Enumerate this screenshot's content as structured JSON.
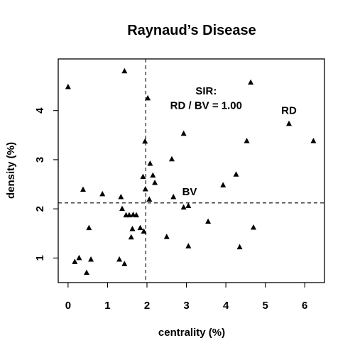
{
  "chart_data": {
    "type": "scatter",
    "title": "Raynaud’s Disease",
    "xlabel": "centrality (%)",
    "ylabel": "density (%)",
    "xlim": [
      -0.25,
      6.5
    ],
    "ylim": [
      0.5,
      5.05
    ],
    "xticks": [
      0,
      1,
      2,
      3,
      4,
      5,
      6
    ],
    "yticks": [
      1,
      2,
      3,
      4
    ],
    "marker": "filled-triangle",
    "grid": false,
    "reference_lines": {
      "vertical_x": 1.97,
      "horizontal_y": 2.12,
      "style": "dashed"
    },
    "annotations": [
      {
        "text": "SIR:",
        "x": 3.5,
        "y": 4.33
      },
      {
        "text": "RD / BV = 1.00",
        "x": 3.5,
        "y": 4.03
      },
      {
        "text": "RD",
        "x": 5.6,
        "y": 3.93
      },
      {
        "text": "BV",
        "x": 3.08,
        "y": 2.28
      }
    ],
    "points": [
      [
        0.0,
        4.48
      ],
      [
        1.43,
        4.8
      ],
      [
        4.63,
        4.57
      ],
      [
        2.02,
        4.25
      ],
      [
        5.6,
        3.73
      ],
      [
        6.22,
        3.38
      ],
      [
        4.53,
        3.38
      ],
      [
        2.93,
        3.53
      ],
      [
        1.95,
        3.37
      ],
      [
        2.63,
        3.01
      ],
      [
        2.08,
        2.92
      ],
      [
        2.15,
        2.68
      ],
      [
        1.9,
        2.65
      ],
      [
        2.2,
        2.53
      ],
      [
        4.26,
        2.7
      ],
      [
        3.93,
        2.48
      ],
      [
        1.96,
        2.4
      ],
      [
        0.38,
        2.39
      ],
      [
        0.87,
        2.3
      ],
      [
        2.67,
        2.24
      ],
      [
        1.34,
        2.24
      ],
      [
        2.06,
        2.19
      ],
      [
        2.93,
        2.03
      ],
      [
        3.05,
        2.06
      ],
      [
        1.37,
        2.0
      ],
      [
        1.55,
        1.87
      ],
      [
        1.65,
        1.88
      ],
      [
        1.73,
        1.87
      ],
      [
        1.47,
        1.87
      ],
      [
        3.55,
        1.74
      ],
      [
        0.53,
        1.61
      ],
      [
        4.7,
        1.62
      ],
      [
        1.83,
        1.61
      ],
      [
        1.63,
        1.59
      ],
      [
        1.92,
        1.54
      ],
      [
        2.5,
        1.43
      ],
      [
        1.6,
        1.42
      ],
      [
        3.05,
        1.24
      ],
      [
        4.35,
        1.22
      ],
      [
        0.28,
        1.0
      ],
      [
        0.58,
        0.97
      ],
      [
        1.3,
        0.97
      ],
      [
        0.17,
        0.92
      ],
      [
        1.43,
        0.88
      ],
      [
        0.47,
        0.7
      ]
    ]
  }
}
